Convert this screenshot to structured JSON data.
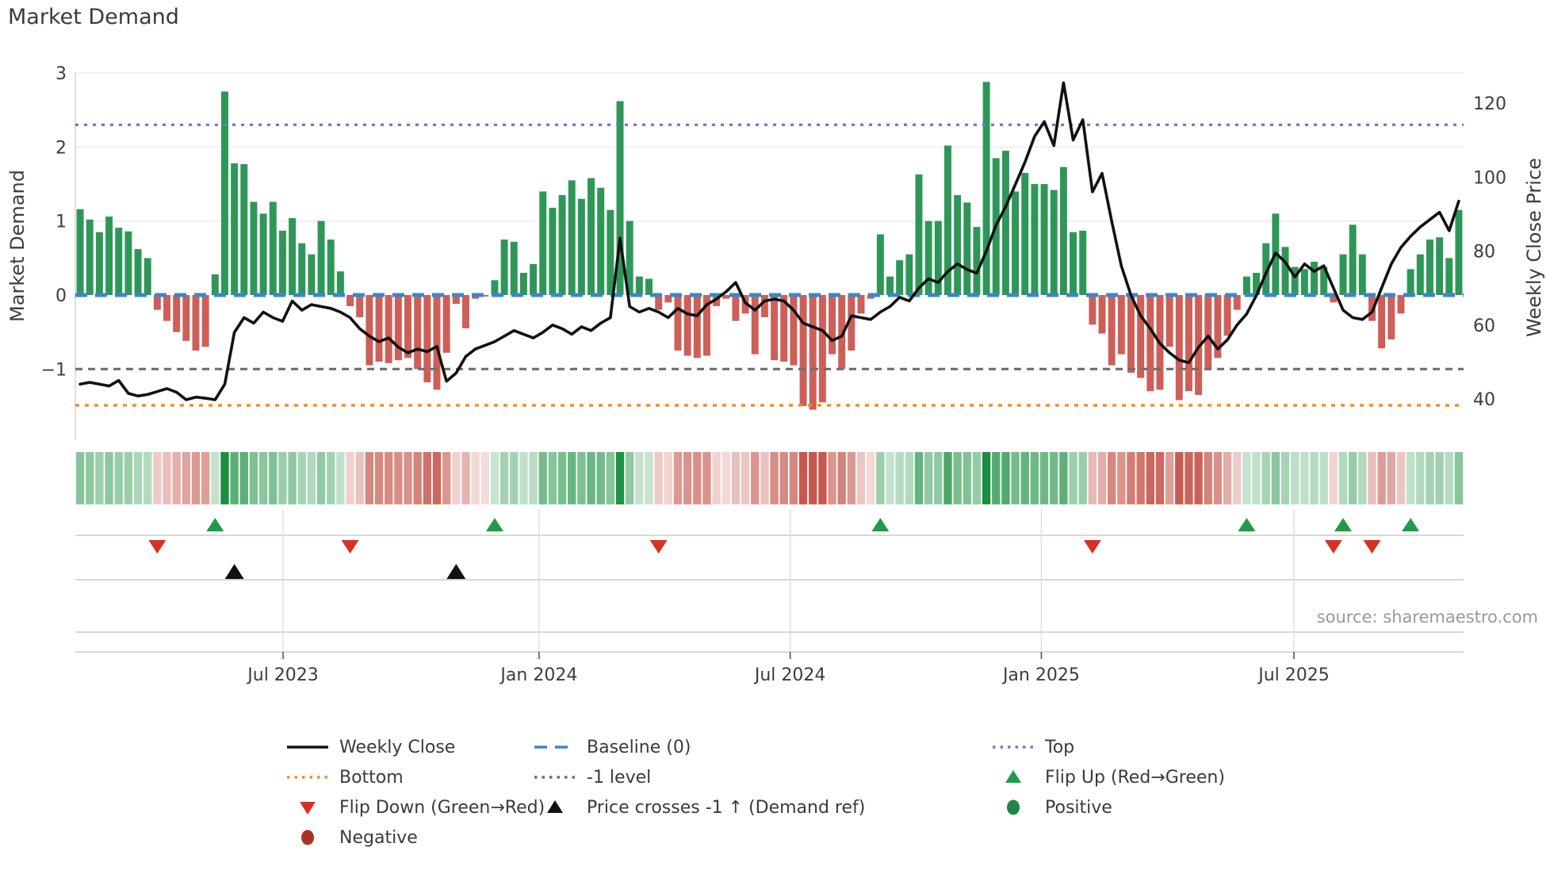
{
  "title": "Market Demand",
  "source": "source: sharemaestro.com",
  "axes": {
    "left_label": "Market Demand",
    "right_label": "Weekly Close Price",
    "left_ticks": [
      {
        "label": "3",
        "value": 3
      },
      {
        "label": "2",
        "value": 2
      },
      {
        "label": "1",
        "value": 1
      },
      {
        "label": "0",
        "value": 0
      },
      {
        "label": "−1",
        "value": -1
      }
    ],
    "right_ticks": [
      {
        "label": "120",
        "value": 120
      },
      {
        "label": "100",
        "value": 100
      },
      {
        "label": "80",
        "value": 80
      },
      {
        "label": "60",
        "value": 60
      },
      {
        "label": "40",
        "value": 40
      }
    ],
    "x_ticks": [
      {
        "label": "Jul 2023",
        "week": 21.05
      },
      {
        "label": "Jan 2024",
        "week": 47.6
      },
      {
        "label": "Jul 2024",
        "week": 73.65
      },
      {
        "label": "Jan 2025",
        "week": 99.7
      },
      {
        "label": "Jul 2025",
        "week": 125.9
      }
    ]
  },
  "colors": {
    "bar_positive": "#2e9758",
    "bar_negative": "#cd5f59",
    "price_line": "#111111",
    "baseline": "#3a87c8",
    "top_line": "#7d6fe0",
    "bottom_line": "#ef8e1b",
    "minus1_line": "#6e6e6e",
    "flip_up": "#1e9c4a",
    "flip_down": "#d93025",
    "price_cross": "#111111",
    "positive_dot": "#1e8449",
    "negative_dot": "#a93226",
    "grid": "#e9e9f1",
    "panel_grid": "#cccccc",
    "heat_green_rgb": "26,143,64",
    "heat_red_rgb": "198,89,79"
  },
  "ref_lines": {
    "top": {
      "label": "Top",
      "value": 2.3
    },
    "baseline": {
      "label": "Baseline (0)",
      "value": 0
    },
    "minus1": {
      "label": "-1 level",
      "value": -1
    },
    "bottom": {
      "label": "Bottom",
      "value": -1.49
    }
  },
  "legend": [
    {
      "label": "Weekly Close",
      "type": "line",
      "color": "#111111",
      "col": 1,
      "row": 1
    },
    {
      "label": "Baseline (0)",
      "type": "dashed",
      "color": "#3a87c8",
      "col": 2,
      "row": 1
    },
    {
      "label": "Top",
      "type": "dotted",
      "color": "#7d6fe0",
      "col": 3,
      "row": 1
    },
    {
      "label": "Bottom",
      "type": "dotted",
      "color": "#ef8e1b",
      "col": 1,
      "row": 2
    },
    {
      "label": "-1 level",
      "type": "dotted",
      "color": "#6e6e6e",
      "col": 2,
      "row": 2
    },
    {
      "label": "Flip Up (Red→Green)",
      "type": "tri-up",
      "color": "#1e9c4a",
      "col": 3,
      "row": 2
    },
    {
      "label": "Flip Down (Green→Red)",
      "type": "tri-down",
      "color": "#d93025",
      "col": 1,
      "row": 3
    },
    {
      "label": "Price crosses -1 ↑ (Demand ref)",
      "type": "tri-up",
      "color": "#111111",
      "col": 2,
      "row": 3
    },
    {
      "label": "Positive",
      "type": "circle",
      "color": "#1e8449",
      "col": 3,
      "row": 3
    },
    {
      "label": "Negative",
      "type": "circle",
      "color": "#a93226",
      "col": 1,
      "row": 4
    }
  ],
  "chart_data": {
    "type": "bar+line",
    "n_weeks": 144,
    "x_range_note": "weekly bars, Feb 2023 through Oct 2025",
    "demand_ylim": [
      -1.8,
      3
    ],
    "price_ylim": [
      35,
      128
    ],
    "demand": [
      1.16,
      1.02,
      0.85,
      1.06,
      0.91,
      0.86,
      0.62,
      0.5,
      -0.2,
      -0.35,
      -0.5,
      -0.62,
      -0.75,
      -0.7,
      0.28,
      2.75,
      1.78,
      1.77,
      1.26,
      1.1,
      1.26,
      0.87,
      1.04,
      0.7,
      0.55,
      1.0,
      0.75,
      0.32,
      -0.15,
      -0.3,
      -0.95,
      -0.9,
      -0.92,
      -0.88,
      -0.85,
      -1.0,
      -1.18,
      -1.28,
      -0.78,
      -0.12,
      -0.45,
      -0.05,
      -0.02,
      0.2,
      0.75,
      0.72,
      0.3,
      0.42,
      1.4,
      1.18,
      1.35,
      1.55,
      1.3,
      1.58,
      1.45,
      1.15,
      2.62,
      1.0,
      0.25,
      0.22,
      -0.2,
      -0.1,
      -0.75,
      -0.82,
      -0.85,
      -0.82,
      -0.15,
      -0.05,
      -0.35,
      -0.25,
      -0.8,
      -0.3,
      -0.88,
      -0.9,
      -0.95,
      -1.5,
      -1.55,
      -1.45,
      -0.8,
      -1.0,
      -0.75,
      -0.25,
      -0.05,
      0.82,
      0.25,
      0.47,
      0.55,
      1.63,
      1.0,
      1.0,
      2.02,
      1.35,
      1.25,
      0.92,
      2.88,
      1.85,
      1.95,
      1.4,
      1.65,
      1.5,
      1.5,
      1.42,
      1.73,
      0.85,
      0.87,
      -0.4,
      -0.52,
      -0.95,
      -0.8,
      -1.05,
      -1.12,
      -1.3,
      -1.28,
      -0.7,
      -1.42,
      -1.3,
      -1.35,
      -1.0,
      -0.85,
      -0.55,
      -0.2,
      0.25,
      0.3,
      0.7,
      1.1,
      0.65,
      0.38,
      0.35,
      0.45,
      0.38,
      -0.1,
      0.55,
      0.95,
      0.55,
      -0.35,
      -0.72,
      -0.6,
      -0.25,
      0.35,
      0.55,
      0.75,
      0.78,
      0.5,
      1.15
    ],
    "price": [
      44.0,
      44.5,
      44.0,
      43.5,
      45.0,
      41.5,
      40.8,
      41.2,
      42.0,
      42.8,
      41.8,
      39.8,
      40.5,
      40.2,
      39.8,
      44.0,
      58.0,
      62.0,
      60.5,
      63.5,
      62.0,
      61.0,
      66.5,
      64.0,
      65.5,
      65.0,
      64.5,
      63.5,
      62.0,
      59.0,
      57.0,
      55.5,
      56.5,
      54.0,
      52.5,
      53.5,
      52.8,
      54.2,
      44.8,
      47.0,
      51.5,
      53.5,
      54.5,
      55.5,
      57.0,
      58.5,
      57.5,
      56.5,
      58.0,
      60.0,
      59.0,
      57.5,
      59.5,
      58.5,
      60.5,
      62.0,
      83.5,
      65.0,
      63.5,
      64.5,
      63.5,
      62.0,
      64.5,
      63.0,
      62.5,
      65.5,
      67.0,
      69.0,
      71.5,
      66.0,
      64.0,
      66.5,
      67.0,
      66.5,
      64.0,
      60.5,
      59.5,
      58.5,
      55.8,
      57.0,
      62.5,
      62.0,
      61.5,
      63.5,
      65.0,
      67.5,
      66.5,
      70.0,
      72.5,
      71.5,
      74.5,
      76.5,
      75.0,
      74.0,
      80.0,
      87.0,
      92.0,
      98.0,
      104.0,
      111.0,
      115.0,
      108.5,
      125.5,
      110.0,
      115.5,
      96.0,
      101.0,
      88.0,
      76.0,
      68.0,
      62.5,
      59.0,
      55.0,
      52.5,
      50.5,
      49.8,
      54.0,
      57.0,
      53.5,
      56.0,
      60.0,
      63.0,
      68.0,
      74.0,
      79.5,
      77.0,
      73.0,
      76.5,
      74.5,
      76.0,
      70.0,
      64.0,
      62.0,
      61.5,
      63.5,
      70.0,
      76.5,
      81.0,
      84.0,
      86.5,
      88.5,
      90.5,
      85.5,
      93.5
    ],
    "flip_up_weeks": [
      14,
      43,
      83,
      121,
      131,
      138
    ],
    "flip_down_weeks": [
      8,
      28,
      60,
      105,
      130,
      134
    ],
    "price_cross_weeks": [
      16,
      39
    ]
  }
}
